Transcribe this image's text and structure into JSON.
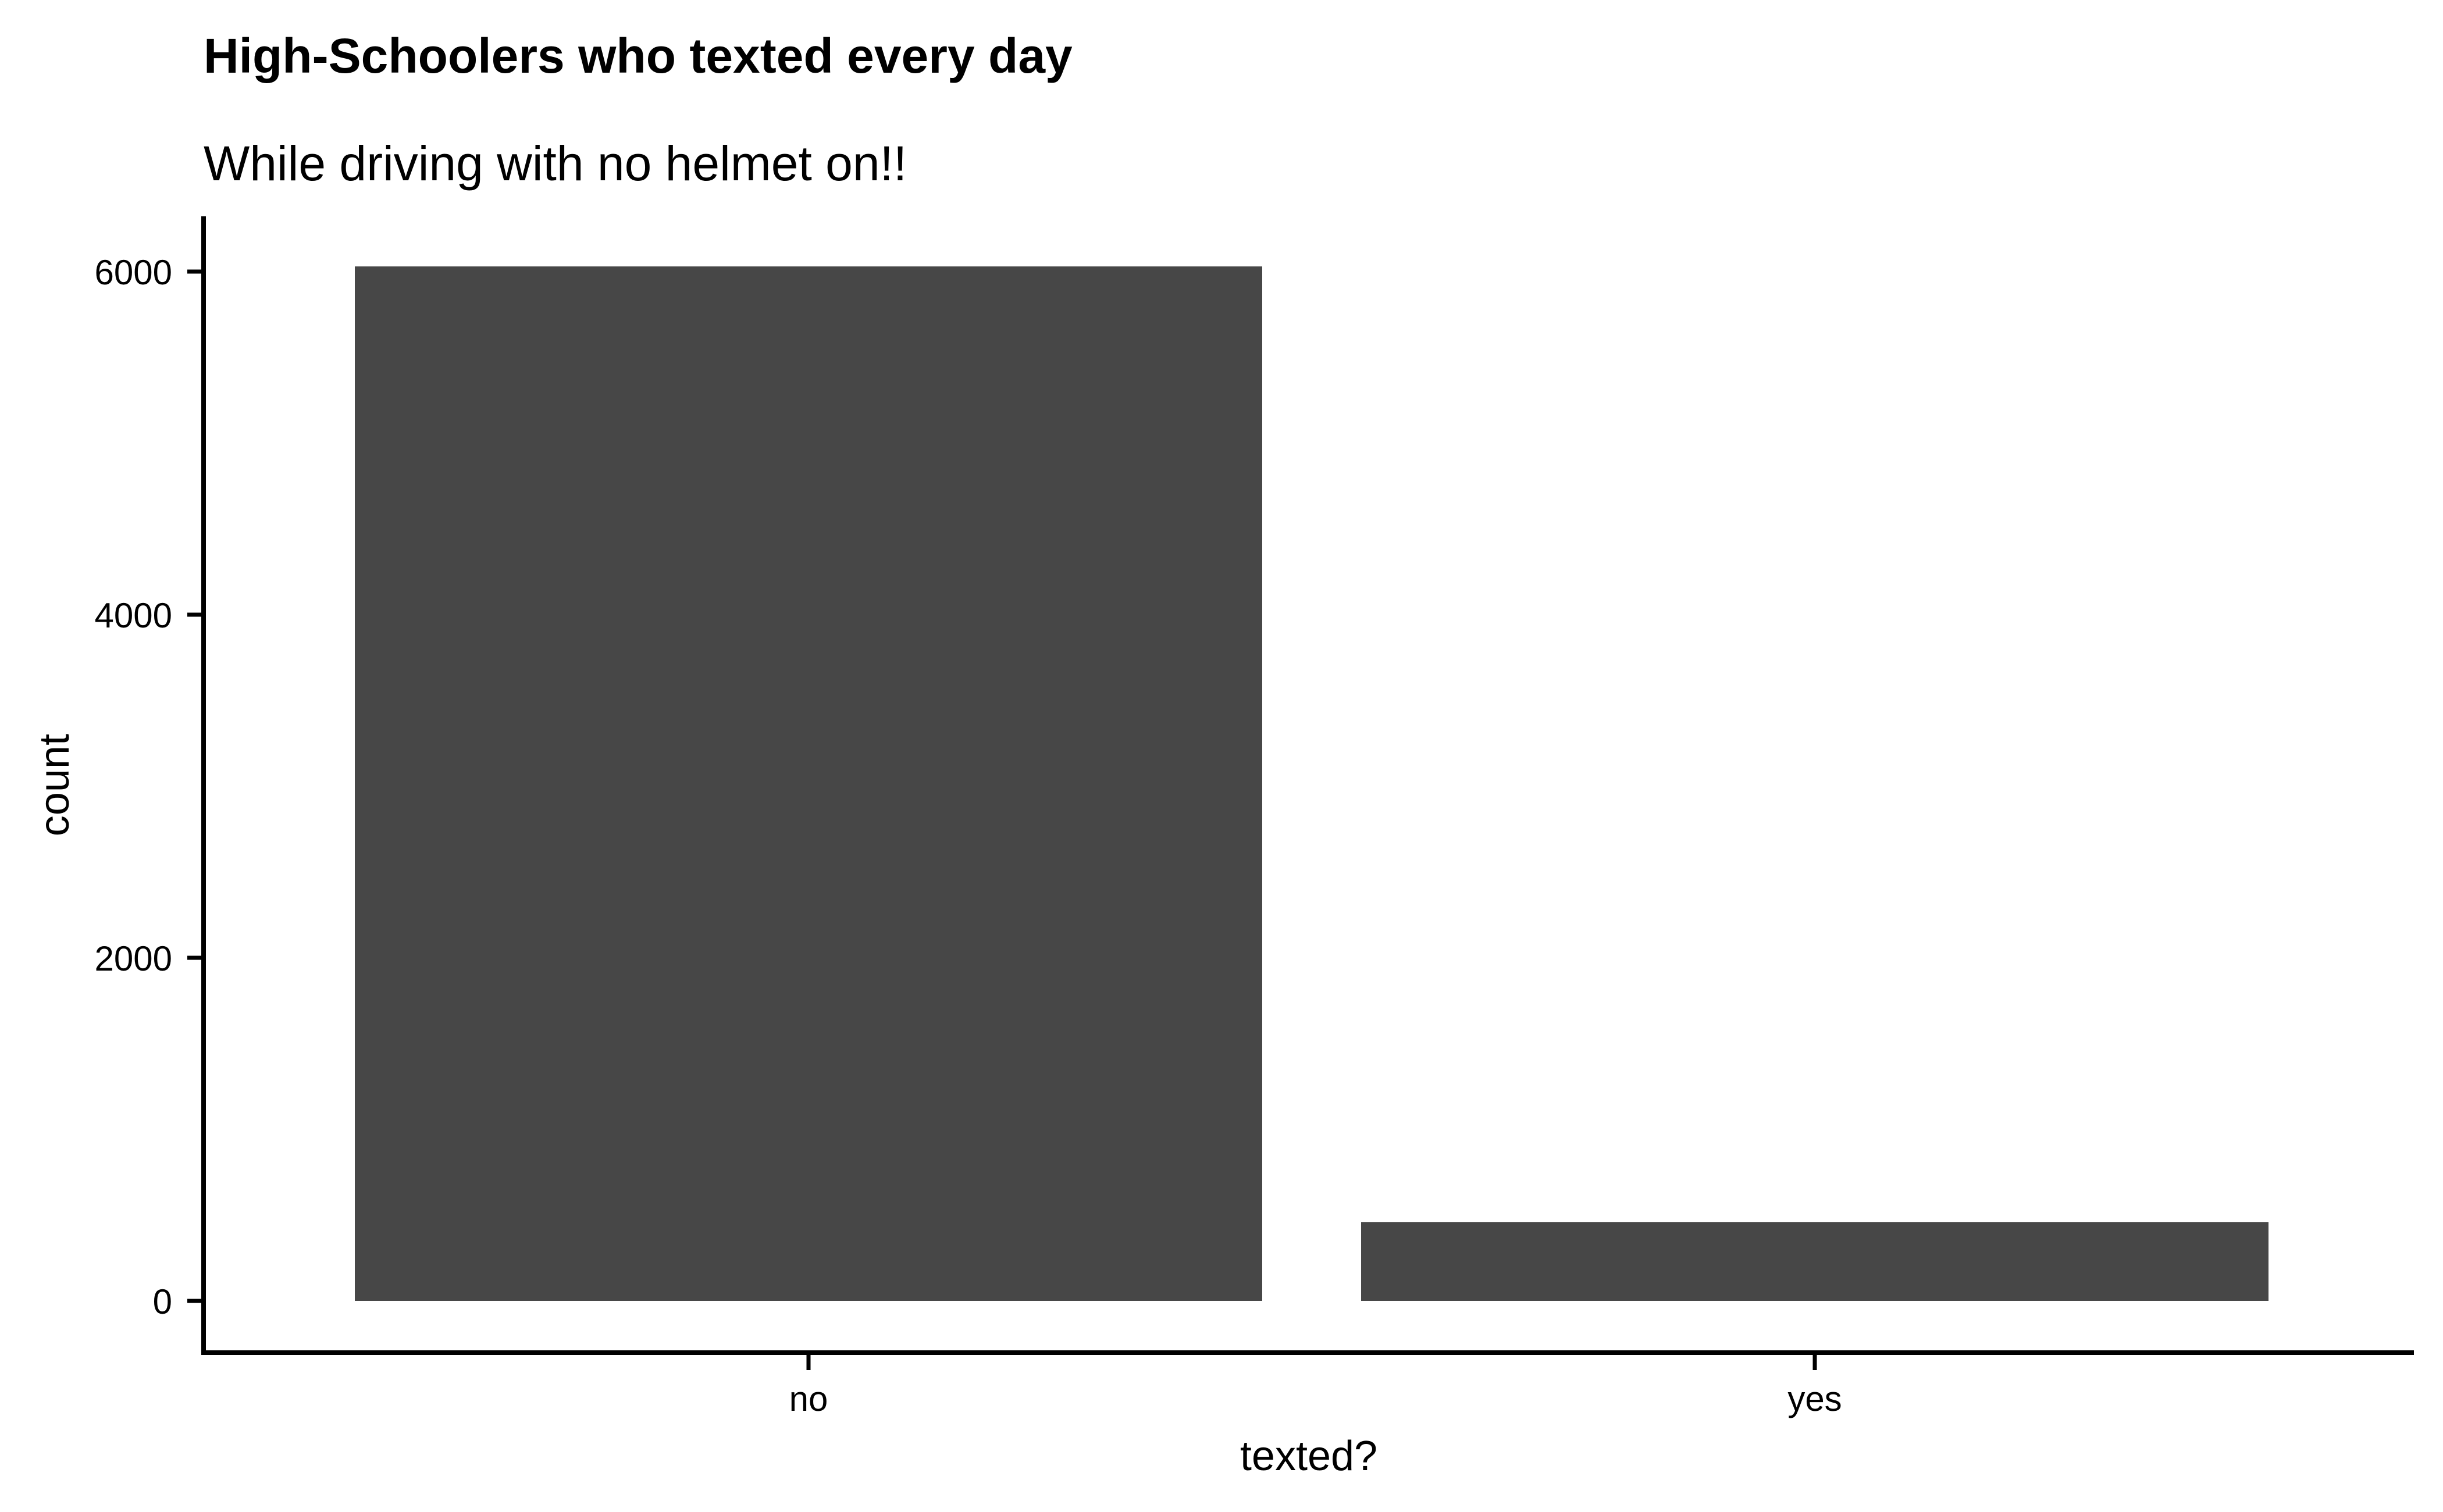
{
  "chart_data": {
    "type": "bar",
    "title": "High-Schoolers who texted every day",
    "subtitle": "While driving with no helmet on!!",
    "xlabel": "texted?",
    "ylabel": "count",
    "categories": [
      "no",
      "yes"
    ],
    "values": [
      6030,
      460
    ],
    "ylim": [
      0,
      6300
    ],
    "yticks": [
      0,
      2000,
      4000,
      6000
    ],
    "ytick_labels": [
      "0",
      "2000",
      "4000",
      "6000"
    ],
    "bar_color": "#474747",
    "grid": false,
    "legend": "none"
  }
}
